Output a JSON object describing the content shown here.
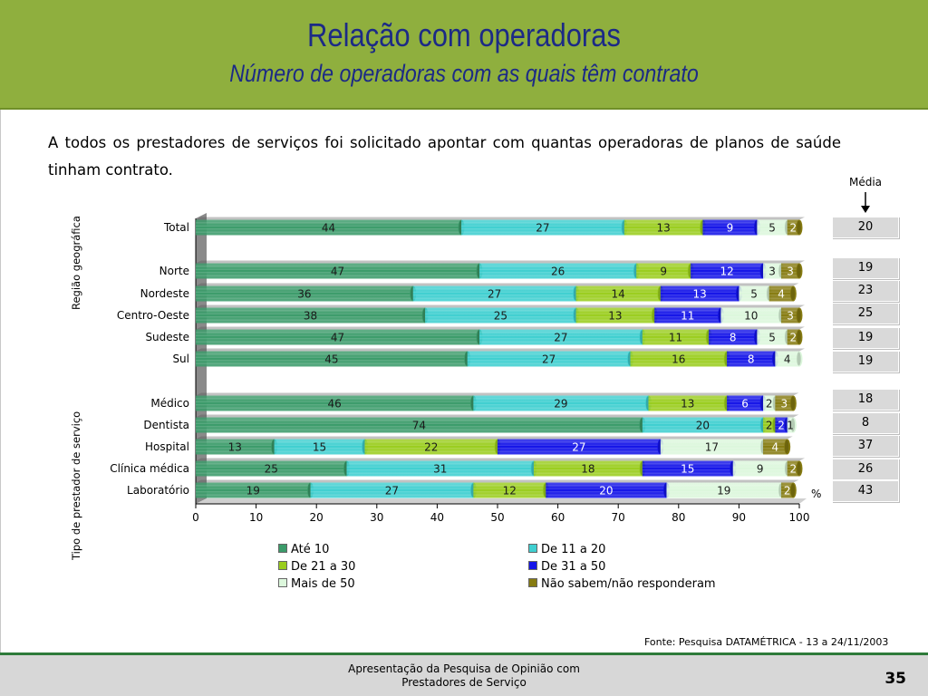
{
  "header": {
    "title": "Relação com operadoras",
    "subtitle": "Número de operadoras com as quais têm contrato"
  },
  "intro": "A todos os prestadores de serviços foi solicitado apontar com quantas operadoras de planos de saúde tinham contrato.",
  "media": {
    "label": "Média",
    "values": [
      "20",
      "19",
      "23",
      "25",
      "19",
      "19",
      "18",
      "8",
      "37",
      "26",
      "43"
    ]
  },
  "groups": {
    "regiao": "Região geográfica",
    "tipo": "Tipo de prestador de serviço"
  },
  "colors": {
    "ate_10": "#3b9b6a",
    "de_11_20": "#3fcfd0",
    "de_21_30": "#9acd1e",
    "de_31_50": "#1414e8",
    "mais_50": "#dcf7dc",
    "nao_sabem": "#867b11"
  },
  "chart_data": {
    "type": "bar",
    "orientation": "horizontal",
    "stacked": true,
    "categories": [
      "Total",
      "Norte",
      "Nordeste",
      "Centro-Oeste",
      "Sudeste",
      "Sul",
      "Médico",
      "Dentista",
      "Hospital",
      "Clínica médica",
      "Laboratório"
    ],
    "series": [
      {
        "name": "Até 10",
        "values": [
          44,
          47,
          36,
          38,
          47,
          45,
          46,
          74,
          13,
          25,
          19
        ]
      },
      {
        "name": "De 11 a 20",
        "values": [
          27,
          26,
          27,
          25,
          27,
          27,
          29,
          20,
          15,
          31,
          27
        ]
      },
      {
        "name": "De 21 a 30",
        "values": [
          13,
          9,
          14,
          13,
          11,
          16,
          13,
          2,
          22,
          18,
          12
        ]
      },
      {
        "name": "De 31 a 50",
        "values": [
          9,
          12,
          13,
          11,
          8,
          8,
          6,
          2,
          27,
          15,
          20
        ]
      },
      {
        "name": "Mais de 50",
        "values": [
          5,
          3,
          5,
          10,
          5,
          4,
          2,
          1,
          17,
          9,
          19
        ]
      },
      {
        "name": "Não sabem/não responderam",
        "values": [
          2,
          3,
          4,
          3,
          2,
          null,
          3,
          null,
          4,
          2,
          2
        ]
      }
    ],
    "xlim": [
      0,
      100
    ],
    "xticks": [
      0,
      10,
      20,
      30,
      40,
      50,
      60,
      70,
      80,
      90,
      100
    ],
    "unit": "%",
    "legend_position": "bottom"
  },
  "source": "Fonte: Pesquisa DATAMÉTRICA - 13 a 24/11/2003",
  "footer": {
    "line1": "Apresentação da Pesquisa de Opinião com",
    "line2": "Prestadores de Serviço",
    "page": "35"
  }
}
